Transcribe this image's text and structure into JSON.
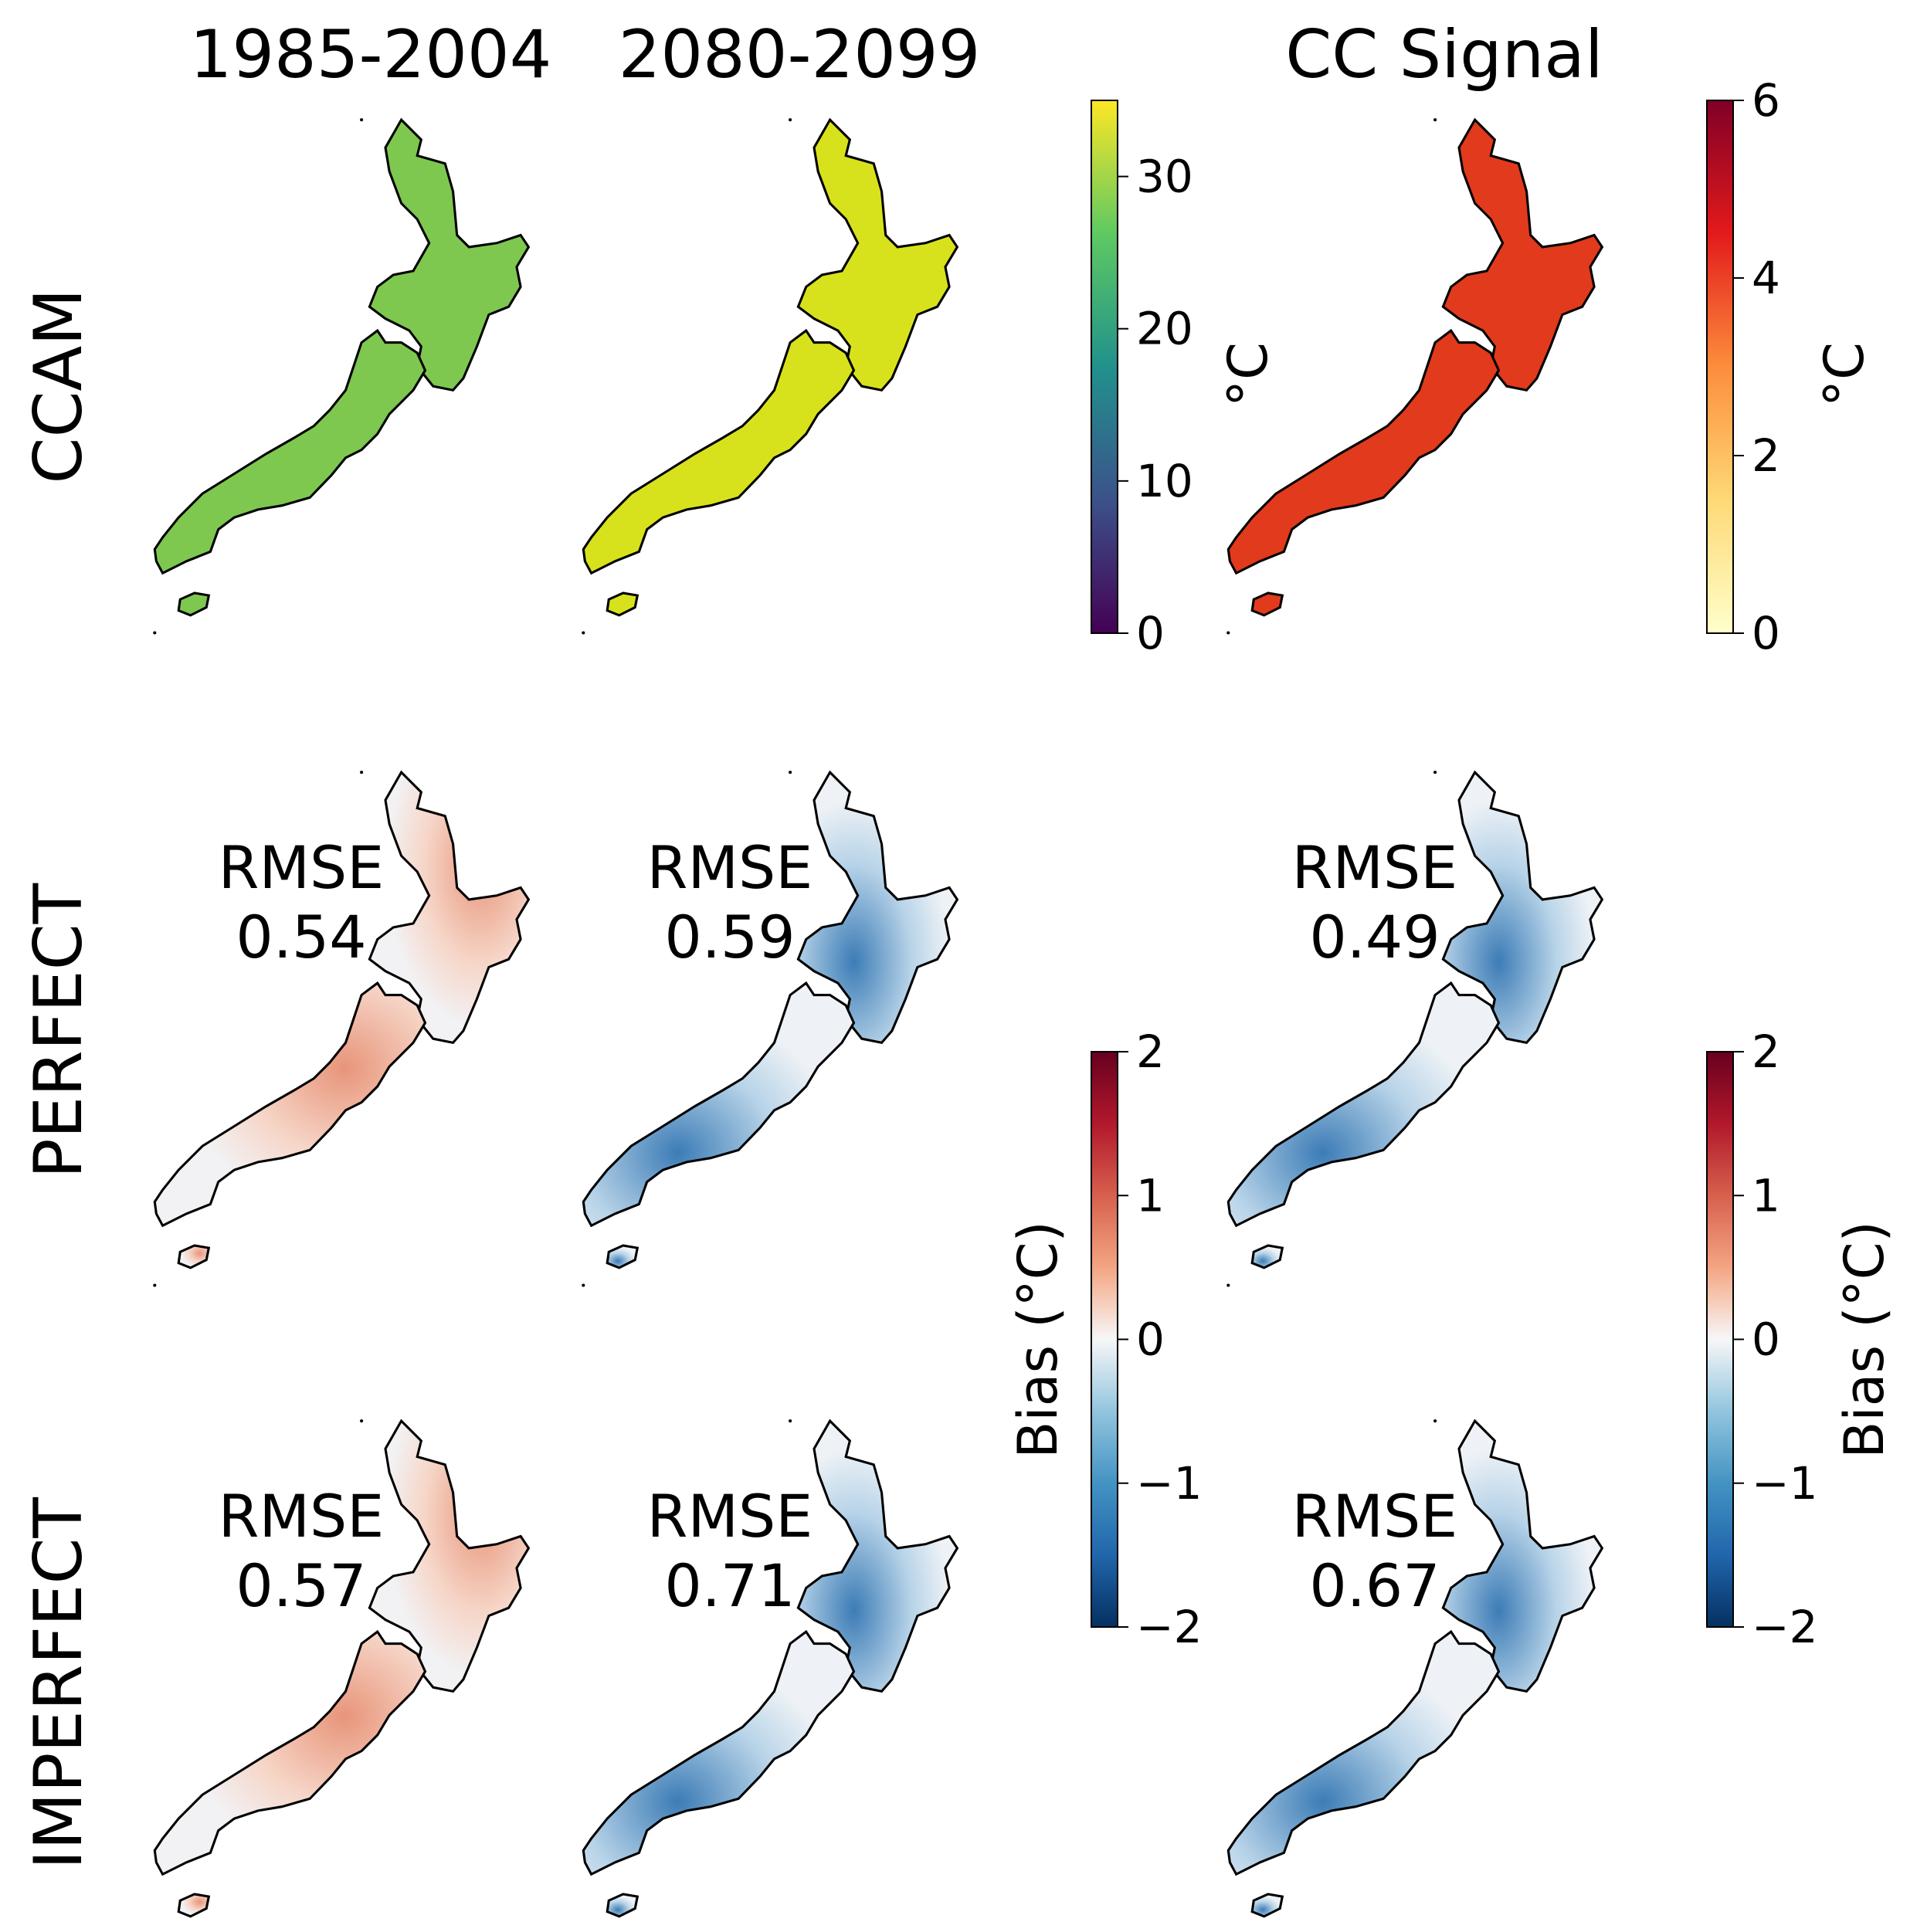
{
  "columns": [
    "1985-2004",
    "2080-2099",
    "CC Signal"
  ],
  "rows": [
    "CCAM",
    "PERFECT",
    "IMPERFECT"
  ],
  "colors": {
    "viridis": [
      "#440154",
      "#3b528b",
      "#21918c",
      "#5ec962",
      "#fde725"
    ],
    "ylorrd": [
      "#ffffcc",
      "#fed976",
      "#fd8d3c",
      "#e31a1c",
      "#800026"
    ],
    "rdbu": [
      "#053061",
      "#2166ac",
      "#4393c3",
      "#92c5de",
      "#f7f7f7",
      "#f4a582",
      "#d6604d",
      "#b2182b",
      "#67001f"
    ],
    "ccam_hist_fill": "#7ec850",
    "ccam_fut_fill": "#d8e21c",
    "ccam_cc_fill": "#e23a1c"
  },
  "colorbars": [
    {
      "id": "temperature",
      "label": "°C",
      "ticks": [
        "0",
        "10",
        "20",
        "30"
      ],
      "range": [
        0,
        35
      ],
      "cmap": "viridis"
    },
    {
      "id": "cc",
      "label": "°C",
      "ticks": [
        "0",
        "2",
        "4",
        "6"
      ],
      "range": [
        0,
        6
      ],
      "cmap": "ylorrd"
    },
    {
      "id": "bias_left",
      "label": "Bias (°C)",
      "ticks": [
        "−2",
        "−1",
        "0",
        "1",
        "2"
      ],
      "range": [
        -2,
        2
      ],
      "cmap": "rdbu"
    },
    {
      "id": "bias_right",
      "label": "Bias (°C)",
      "ticks": [
        "−2",
        "−1",
        "0",
        "1",
        "2"
      ],
      "range": [
        -2,
        2
      ],
      "cmap": "rdbu"
    }
  ],
  "chart_data": {
    "type": "heatmap",
    "title": "",
    "panels": [
      {
        "row": "CCAM",
        "column": "1985-2004",
        "rmse_label": "",
        "rmse": null,
        "mean_value": 24,
        "cmap": "viridis",
        "units": "°C"
      },
      {
        "row": "CCAM",
        "column": "2080-2099",
        "rmse_label": "",
        "rmse": null,
        "mean_value": 29,
        "cmap": "viridis",
        "units": "°C"
      },
      {
        "row": "CCAM",
        "column": "CC Signal",
        "rmse_label": "",
        "rmse": null,
        "mean_value": 4.8,
        "cmap": "ylorrd",
        "units": "°C"
      },
      {
        "row": "PERFECT",
        "column": "1985-2004",
        "rmse_label": "RMSE",
        "rmse": "0.54",
        "mean_bias": 0.1,
        "cmap": "rdbu",
        "units": "Bias (°C)"
      },
      {
        "row": "PERFECT",
        "column": "2080-2099",
        "rmse_label": "RMSE",
        "rmse": "0.59",
        "mean_bias": -0.3,
        "cmap": "rdbu",
        "units": "Bias (°C)"
      },
      {
        "row": "PERFECT",
        "column": "CC Signal",
        "rmse_label": "RMSE",
        "rmse": "0.49",
        "mean_bias": -0.4,
        "cmap": "rdbu",
        "units": "Bias (°C)"
      },
      {
        "row": "IMPERFECT",
        "column": "1985-2004",
        "rmse_label": "RMSE",
        "rmse": "0.57",
        "mean_bias": 0.05,
        "cmap": "rdbu",
        "units": "Bias (°C)"
      },
      {
        "row": "IMPERFECT",
        "column": "2080-2099",
        "rmse_label": "RMSE",
        "rmse": "0.71",
        "mean_bias": -0.5,
        "cmap": "rdbu",
        "units": "Bias (°C)"
      },
      {
        "row": "IMPERFECT",
        "column": "CC Signal",
        "rmse_label": "RMSE",
        "rmse": "0.67",
        "mean_bias": -0.55,
        "cmap": "rdbu",
        "units": "Bias (°C)"
      }
    ]
  }
}
